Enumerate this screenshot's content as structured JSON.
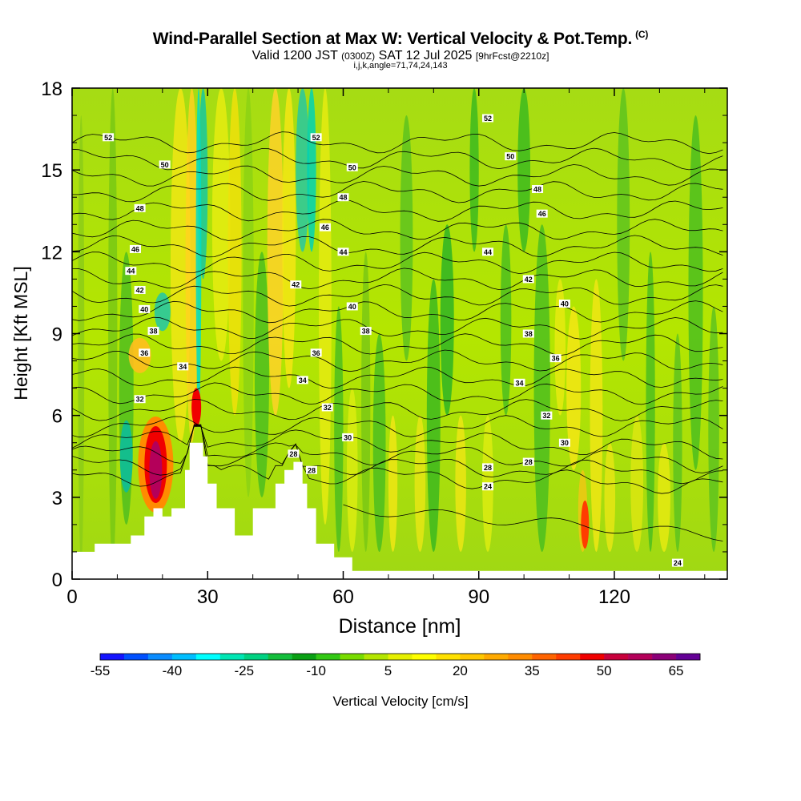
{
  "header": {
    "title": "Wind-Parallel Section at Max W: Vertical Velocity & Pot.Temp.",
    "copyright": "(C)",
    "valid_prefix": "Valid 1200 JST",
    "valid_utc": "(0300Z)",
    "valid_date": "SAT 12 Jul 2025",
    "forecast": "[9hrFcst@2210z]",
    "indices": "i,j,k,angle=71,74,24,143"
  },
  "chart_data": {
    "type": "heatmap",
    "xlabel": "Distance [nm]",
    "ylabel": "Height [Kft MSL]",
    "xlim": [
      0,
      145
    ],
    "ylim": [
      0,
      18
    ],
    "x_ticks": [
      "0",
      "30",
      "60",
      "90",
      "120"
    ],
    "y_ticks": [
      "0",
      "3",
      "6",
      "9",
      "12",
      "15",
      "18"
    ],
    "x_tick_values": [
      0,
      30,
      60,
      90,
      120
    ],
    "y_tick_values": [
      0,
      3,
      6,
      9,
      12,
      15,
      18
    ],
    "colorbar": {
      "label": "Vertical Velocity [cm/s]",
      "tick_labels": [
        "-55",
        "-40",
        "-25",
        "-10",
        "5",
        "20",
        "35",
        "50",
        "65"
      ],
      "colors": [
        "#1414ff",
        "#0050ff",
        "#0a8cff",
        "#00beff",
        "#00ffff",
        "#00e6b4",
        "#00d282",
        "#14be3c",
        "#0aa014",
        "#32c814",
        "#78dc00",
        "#b4e600",
        "#e6f000",
        "#ffff00",
        "#ffe100",
        "#ffc800",
        "#ffaa00",
        "#ff8c00",
        "#ff6400",
        "#ff3c00",
        "#f00000",
        "#c8003c",
        "#b4005a",
        "#8c0078",
        "#640096"
      ]
    },
    "terrain_nm_kft": [
      [
        0,
        1.0
      ],
      [
        5,
        1.0
      ],
      [
        5,
        1.3
      ],
      [
        13,
        1.3
      ],
      [
        13,
        1.6
      ],
      [
        16,
        1.6
      ],
      [
        16,
        2.3
      ],
      [
        18,
        2.3
      ],
      [
        18,
        2.6
      ],
      [
        20,
        2.6
      ],
      [
        20,
        2.3
      ],
      [
        22,
        2.3
      ],
      [
        22,
        2.6
      ],
      [
        25,
        2.6
      ],
      [
        25,
        4.0
      ],
      [
        26,
        4.0
      ],
      [
        26,
        5.0
      ],
      [
        29,
        5.0
      ],
      [
        29,
        4.5
      ],
      [
        30,
        4.5
      ],
      [
        30,
        3.5
      ],
      [
        32,
        3.5
      ],
      [
        32,
        2.6
      ],
      [
        36,
        2.6
      ],
      [
        36,
        1.6
      ],
      [
        40,
        1.6
      ],
      [
        40,
        2.6
      ],
      [
        45,
        2.6
      ],
      [
        45,
        3.5
      ],
      [
        47,
        3.5
      ],
      [
        47,
        4.0
      ],
      [
        49,
        4.0
      ],
      [
        49,
        4.3
      ],
      [
        51,
        4.3
      ],
      [
        51,
        3.5
      ],
      [
        52,
        3.5
      ],
      [
        52,
        2.6
      ],
      [
        54,
        2.6
      ],
      [
        54,
        1.3
      ],
      [
        58,
        1.3
      ],
      [
        58,
        0.8
      ],
      [
        62,
        0.8
      ],
      [
        62,
        0.3
      ],
      [
        145,
        0.3
      ]
    ],
    "theta_label_values": [
      "24",
      "26",
      "28",
      "30",
      "32",
      "34",
      "36",
      "38",
      "40",
      "42",
      "44",
      "46",
      "48",
      "50",
      "52"
    ],
    "contour_labels": [
      {
        "x": 8,
        "y": 16.2,
        "t": "52"
      },
      {
        "x": 20.5,
        "y": 15.2,
        "t": "50"
      },
      {
        "x": 15,
        "y": 13.6,
        "t": "48"
      },
      {
        "x": 14,
        "y": 12.1,
        "t": "46"
      },
      {
        "x": 13,
        "y": 11.3,
        "t": "44"
      },
      {
        "x": 15,
        "y": 10.6,
        "t": "42"
      },
      {
        "x": 16,
        "y": 9.9,
        "t": "40"
      },
      {
        "x": 18,
        "y": 9.1,
        "t": "38"
      },
      {
        "x": 16,
        "y": 8.3,
        "t": "36"
      },
      {
        "x": 24.5,
        "y": 7.8,
        "t": "34"
      },
      {
        "x": 15,
        "y": 6.6,
        "t": "32"
      },
      {
        "x": 54,
        "y": 16.2,
        "t": "52"
      },
      {
        "x": 62,
        "y": 15.1,
        "t": "50"
      },
      {
        "x": 60,
        "y": 14.0,
        "t": "48"
      },
      {
        "x": 56,
        "y": 12.9,
        "t": "46"
      },
      {
        "x": 60,
        "y": 12.0,
        "t": "44"
      },
      {
        "x": 49.5,
        "y": 10.8,
        "t": "42"
      },
      {
        "x": 62,
        "y": 10.0,
        "t": "40"
      },
      {
        "x": 65,
        "y": 9.1,
        "t": "38"
      },
      {
        "x": 54,
        "y": 8.3,
        "t": "36"
      },
      {
        "x": 51,
        "y": 7.3,
        "t": "34"
      },
      {
        "x": 56.5,
        "y": 6.3,
        "t": "32"
      },
      {
        "x": 61,
        "y": 5.2,
        "t": "30"
      },
      {
        "x": 49,
        "y": 4.6,
        "t": "28"
      },
      {
        "x": 53,
        "y": 4.0,
        "t": "28"
      },
      {
        "x": 92,
        "y": 16.9,
        "t": "52"
      },
      {
        "x": 97,
        "y": 15.5,
        "t": "50"
      },
      {
        "x": 103,
        "y": 14.3,
        "t": "48"
      },
      {
        "x": 104,
        "y": 13.4,
        "t": "46"
      },
      {
        "x": 92,
        "y": 12.0,
        "t": "44"
      },
      {
        "x": 101,
        "y": 11.0,
        "t": "42"
      },
      {
        "x": 109,
        "y": 10.1,
        "t": "40"
      },
      {
        "x": 101,
        "y": 9.0,
        "t": "38"
      },
      {
        "x": 107,
        "y": 8.1,
        "t": "36"
      },
      {
        "x": 99,
        "y": 7.2,
        "t": "34"
      },
      {
        "x": 105,
        "y": 6.0,
        "t": "32"
      },
      {
        "x": 109,
        "y": 5.0,
        "t": "30"
      },
      {
        "x": 101,
        "y": 4.3,
        "t": "28"
      },
      {
        "x": 92,
        "y": 4.1,
        "t": "28"
      },
      {
        "x": 92,
        "y": 3.4,
        "t": "24"
      },
      {
        "x": 134,
        "y": 0.6,
        "t": "24"
      }
    ],
    "theta_levels_kft": [
      16.0,
      15.4,
      14.8,
      14.2,
      13.5,
      12.8,
      12.2,
      11.6,
      11.0,
      10.4,
      9.8,
      9.2,
      8.6,
      8.0,
      7.4,
      6.8,
      6.2,
      5.6,
      5.1,
      4.6,
      4.2,
      3.8
    ]
  }
}
